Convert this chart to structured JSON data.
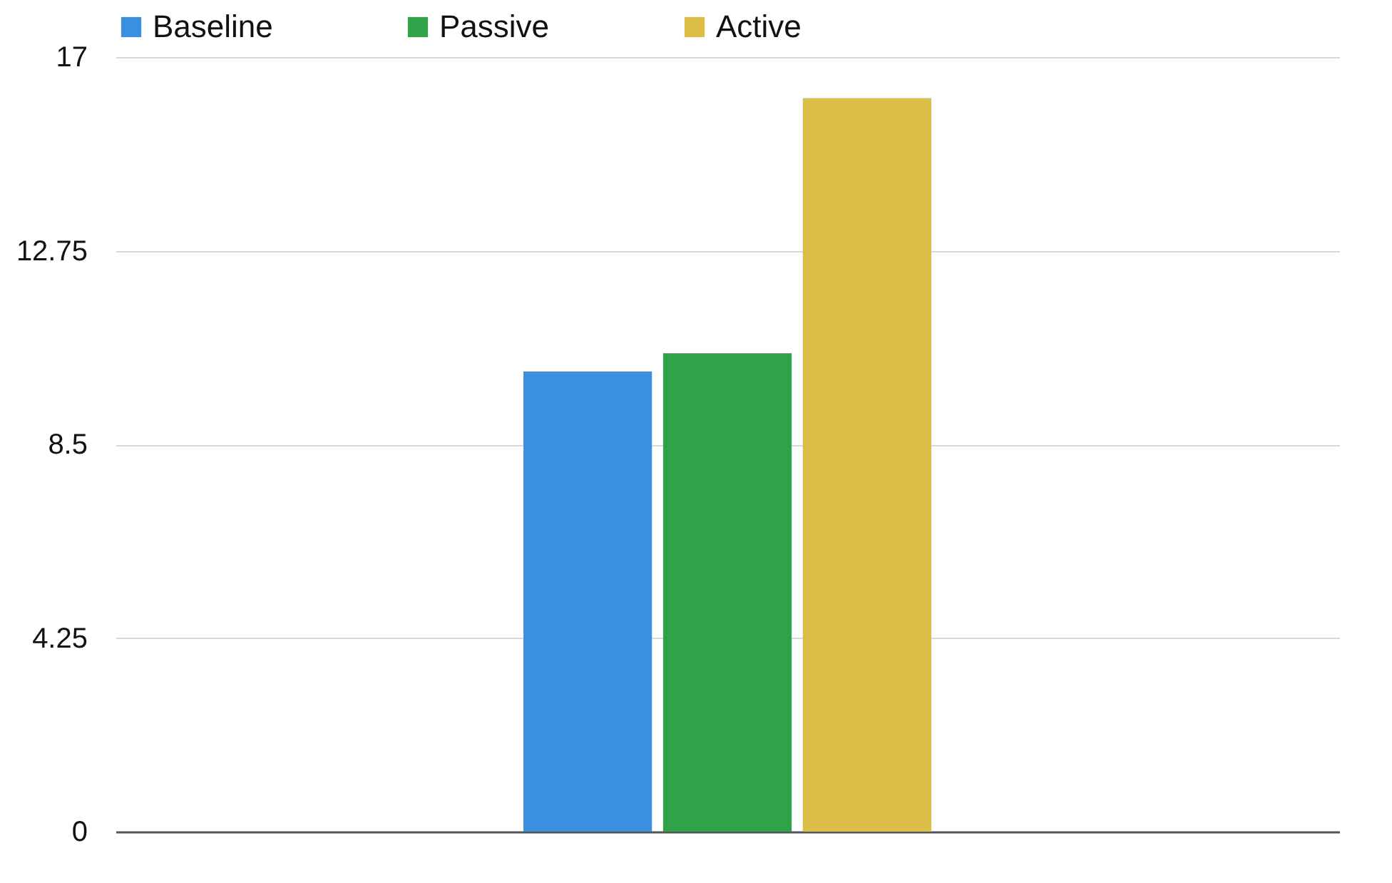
{
  "chart_data": {
    "type": "bar",
    "categories": [
      null
    ],
    "series": [
      {
        "name": "Baseline",
        "color": "#3b8fdf",
        "values": [
          10.1
        ]
      },
      {
        "name": "Passive",
        "color": "#2fa24a",
        "values": [
          10.5
        ]
      },
      {
        "name": "Active",
        "color": "#dcbd48",
        "values": [
          16.1
        ]
      }
    ],
    "ylim": [
      0,
      17
    ],
    "yticks": [
      0,
      4.25,
      8.5,
      12.75,
      17
    ],
    "grid": "y",
    "legend": "top",
    "tick_labels": "y"
  }
}
